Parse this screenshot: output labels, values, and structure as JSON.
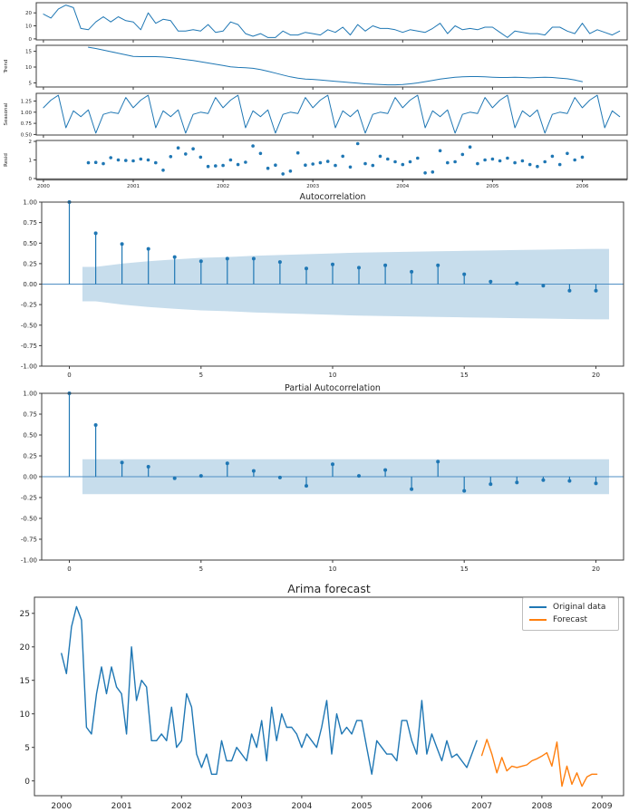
{
  "colors": {
    "series_blue": "#1f77b4",
    "forecast_orange": "#ff7f0e",
    "confidence_band": "#1f77b4",
    "zero_line_blue": "#4f8fc4",
    "spine": "#3c3c3c",
    "text": "#262626",
    "background": "#ffffff"
  },
  "chart_data": [
    {
      "id": "seasonal_decomposition",
      "type": "line",
      "title": "",
      "x_unit": "monthly",
      "xlim": [
        1999.92,
        2006.5
      ],
      "xticks": [
        2000,
        2001,
        2002,
        2003,
        2004,
        2005,
        2006
      ],
      "panels": [
        {
          "name": "observed",
          "ylabel": "",
          "x_start": 2000.0,
          "source": "original_data",
          "count": 78,
          "ylim": [
            -0.8,
            27.8
          ],
          "yticks": [
            "0",
            "10",
            "20"
          ]
        },
        {
          "name": "trend",
          "ylabel": "Trend",
          "x_start": 2000.5,
          "ylim": [
            3.7,
            16.9
          ],
          "yticks": [
            "5",
            "10",
            "15"
          ],
          "values": [
            16.3,
            15.9,
            15.4,
            14.9,
            14.4,
            13.9,
            13.4,
            13.3,
            13.3,
            13.3,
            13.2,
            13.0,
            12.7,
            12.4,
            12.1,
            11.7,
            11.3,
            10.9,
            10.5,
            10.1,
            9.9,
            9.8,
            9.6,
            9.2,
            8.7,
            8.1,
            7.5,
            6.9,
            6.5,
            6.2,
            6.1,
            5.9,
            5.7,
            5.5,
            5.3,
            5.1,
            4.9,
            4.7,
            4.6,
            4.5,
            4.4,
            4.4,
            4.5,
            4.7,
            5.0,
            5.4,
            5.8,
            6.2,
            6.5,
            6.8,
            6.9,
            7.0,
            7.0,
            6.9,
            6.8,
            6.7,
            6.7,
            6.8,
            6.7,
            6.6,
            6.7,
            6.8,
            6.7,
            6.5,
            6.3,
            5.9,
            5.4
          ]
        },
        {
          "name": "seasonal",
          "ylabel": "Seasonal",
          "x_start": 2000.0,
          "ylim": [
            0.487,
            1.423
          ],
          "yticks": [
            "0.50",
            "0.75",
            "1.00",
            "1.25"
          ],
          "pattern": [
            1.1,
            1.27,
            1.38,
            0.65,
            1.03,
            0.9,
            1.05,
            0.53,
            0.95,
            1.0,
            0.97,
            1.33
          ],
          "repeat": 78
        },
        {
          "name": "resid",
          "ylabel": "Resid",
          "kind": "scatter",
          "x_start": 2000.5,
          "ylim": [
            -0.05,
            2.05
          ],
          "yticks": [
            "0",
            "1",
            "2"
          ],
          "values": [
            0.85,
            0.87,
            0.8,
            1.12,
            1.0,
            0.97,
            0.95,
            1.05,
            1.0,
            0.85,
            0.45,
            1.18,
            1.65,
            1.32,
            1.6,
            1.15,
            0.65,
            0.68,
            0.7,
            1.0,
            0.75,
            0.88,
            1.75,
            1.35,
            0.55,
            0.72,
            0.25,
            0.4,
            1.38,
            0.72,
            0.78,
            0.85,
            0.92,
            0.7,
            1.2,
            0.62,
            1.88,
            0.8,
            0.7,
            1.2,
            1.05,
            0.9,
            0.75,
            0.9,
            1.1,
            0.3,
            0.35,
            1.5,
            0.85,
            0.9,
            1.3,
            1.7,
            0.8,
            1.0,
            1.05,
            0.95,
            1.1,
            0.85,
            0.95,
            0.75,
            0.65,
            0.9,
            1.2,
            0.75,
            1.35,
            1.0,
            1.15
          ]
        }
      ]
    },
    {
      "id": "acf",
      "type": "stem",
      "title": "Autocorrelation",
      "xlim": [
        -1.05,
        21.05
      ],
      "ylim": [
        -1,
        1
      ],
      "xticks": [
        0,
        5,
        10,
        15,
        20
      ],
      "yticks": [
        "-1.00",
        "-0.75",
        "-0.50",
        "-0.25",
        "0.00",
        "0.25",
        "0.50",
        "0.75",
        "1.00"
      ],
      "lags": [
        0,
        1,
        2,
        3,
        4,
        5,
        6,
        7,
        8,
        9,
        10,
        11,
        12,
        13,
        14,
        15,
        16,
        17,
        18,
        19,
        20
      ],
      "values": [
        1.0,
        0.62,
        0.49,
        0.43,
        0.33,
        0.28,
        0.31,
        0.31,
        0.27,
        0.19,
        0.24,
        0.2,
        0.23,
        0.15,
        0.23,
        0.12,
        0.03,
        0.01,
        -0.02,
        -0.08,
        -0.08
      ],
      "conf_upper": [
        0.21,
        0.25,
        0.28,
        0.3,
        0.32,
        0.33,
        0.345,
        0.355,
        0.365,
        0.375,
        0.385,
        0.39,
        0.395,
        0.4,
        0.405,
        0.41,
        0.415,
        0.42,
        0.425,
        0.43
      ]
    },
    {
      "id": "pacf",
      "type": "stem",
      "title": "Partial Autocorrelation",
      "xlim": [
        -1.05,
        21.05
      ],
      "ylim": [
        -1,
        1
      ],
      "xticks": [
        0,
        5,
        10,
        15,
        20
      ],
      "yticks": [
        "-1.00",
        "-0.75",
        "-0.50",
        "-0.25",
        "0.00",
        "0.25",
        "0.50",
        "0.75",
        "1.00"
      ],
      "lags": [
        0,
        1,
        2,
        3,
        4,
        5,
        6,
        7,
        8,
        9,
        10,
        11,
        12,
        13,
        14,
        15,
        16,
        17,
        18,
        19,
        20
      ],
      "values": [
        1.0,
        0.62,
        0.17,
        0.12,
        -0.02,
        0.01,
        0.16,
        0.07,
        -0.01,
        -0.11,
        0.15,
        0.01,
        0.08,
        -0.15,
        0.18,
        -0.17,
        -0.09,
        -0.07,
        -0.04,
        -0.05,
        -0.08
      ],
      "conf_const": 0.21
    },
    {
      "id": "arima_forecast",
      "type": "line",
      "title": "Arima forecast",
      "x_unit": "monthly",
      "xlim": [
        1999.55,
        2009.36
      ],
      "ylim": [
        -2.2,
        27.4
      ],
      "xticks": [
        2000,
        2001,
        2002,
        2003,
        2004,
        2005,
        2006,
        2007,
        2008,
        2009
      ],
      "yticks": [
        "0",
        "5",
        "10",
        "15",
        "20",
        "25"
      ],
      "legend_position": "upper right",
      "series": [
        {
          "name": "Original data",
          "x_start": 2000.0,
          "values": [
            19,
            16,
            23,
            26,
            24,
            8,
            7,
            13,
            17,
            13,
            17,
            14,
            13,
            7,
            20,
            12,
            15,
            14,
            6,
            6,
            7,
            6,
            11,
            5,
            6,
            13,
            11,
            4,
            2,
            4,
            1,
            1,
            6,
            3,
            3,
            5,
            4,
            3,
            7,
            5,
            9,
            3,
            11,
            6,
            10,
            8,
            8,
            7,
            5,
            7,
            6,
            5,
            8,
            12,
            4,
            10,
            7,
            8,
            7,
            9,
            9,
            5,
            1,
            6,
            5,
            4,
            4,
            3,
            9,
            9,
            6,
            4,
            12,
            4,
            7,
            5,
            3,
            6,
            3.5,
            4,
            3,
            2,
            4,
            6
          ]
        },
        {
          "name": "Forecast",
          "x_start": 2007.0,
          "values": [
            3.8,
            6.2,
            4.0,
            1.2,
            3.5,
            1.5,
            2.2,
            2.0,
            2.2,
            2.4,
            3.0,
            3.3,
            3.7,
            4.2,
            2.2,
            5.8,
            -0.8,
            2.2,
            -0.5,
            1.2,
            -0.8,
            0.6,
            1.0,
            1.0
          ]
        }
      ]
    }
  ]
}
